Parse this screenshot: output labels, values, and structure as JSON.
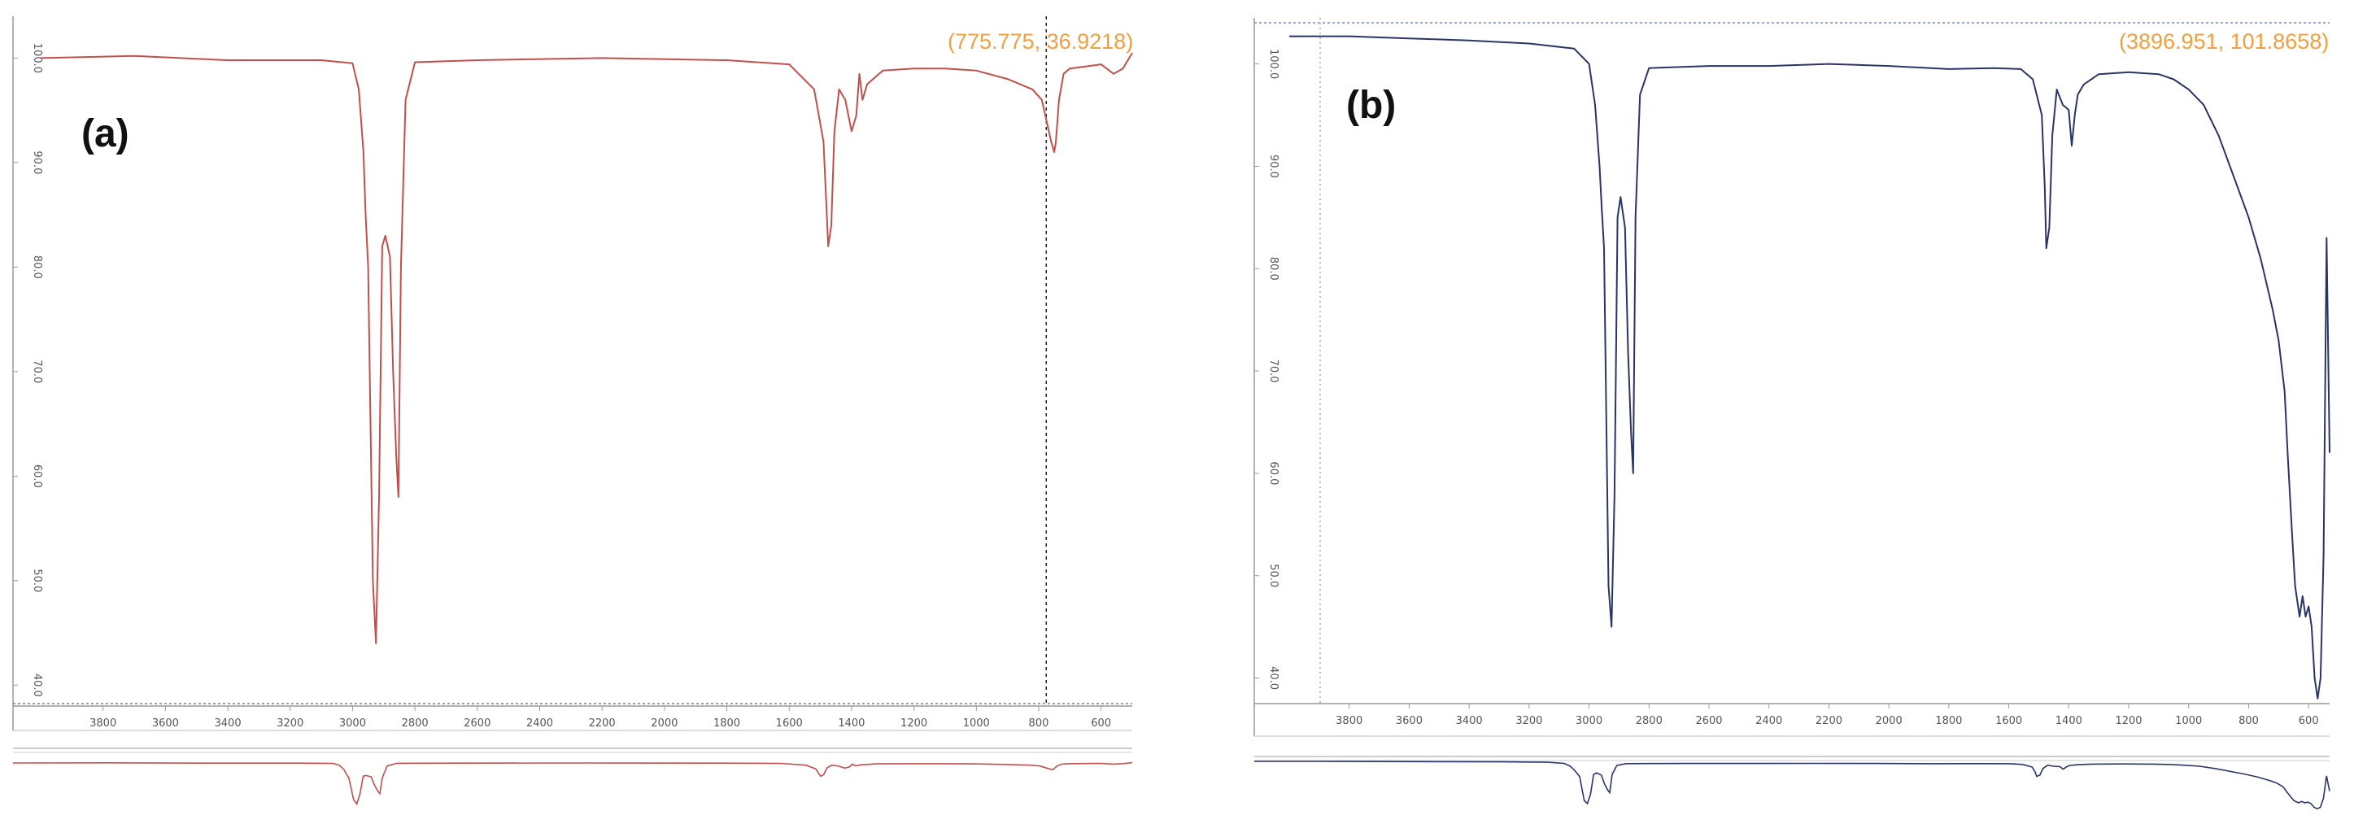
{
  "colors": {
    "panel_a": "#c0504d",
    "panel_b": "#2b3467",
    "readout": "#f0a040",
    "axis": "#888888"
  },
  "chart_data": [
    {
      "type": "line",
      "panel_label": "(a)",
      "readout": "(775.775, 36.9218)",
      "cursor_x": 775.775,
      "xlim": [
        4000,
        500
      ],
      "ylim": [
        38,
        104
      ],
      "xticks": [
        "3800",
        "3600",
        "3400",
        "3200",
        "3000",
        "2800",
        "2600",
        "2400",
        "2200",
        "2000",
        "1800",
        "1600",
        "1400",
        "1200",
        "1000",
        "800",
        "600"
      ],
      "yticks": [
        "40.0",
        "50.0",
        "60.0",
        "70.0",
        "80.0",
        "90.0",
        "100.0"
      ],
      "series": [
        {
          "x": [
            4000,
            3700,
            3400,
            3100,
            3000,
            2980,
            2965,
            2958,
            2950,
            2935,
            2925,
            2915,
            2905,
            2895,
            2880,
            2870,
            2860,
            2853,
            2845,
            2830,
            2800,
            2600,
            2200,
            1800,
            1600,
            1520,
            1490,
            1475,
            1465,
            1455,
            1440,
            1420,
            1400,
            1385,
            1375,
            1365,
            1350,
            1300,
            1200,
            1100,
            1000,
            900,
            820,
            790,
            760,
            750,
            745,
            735,
            720,
            700,
            650,
            600,
            560,
            530,
            500
          ],
          "y": [
            100,
            100.2,
            99.8,
            99.8,
            99.5,
            97,
            91,
            85,
            80,
            50,
            44,
            58,
            82,
            83,
            81,
            70,
            62,
            58,
            80,
            96,
            99.6,
            99.8,
            100,
            99.8,
            99.4,
            97,
            92,
            82,
            84,
            93,
            97,
            96,
            93,
            94.5,
            98.5,
            96,
            97.5,
            98.8,
            99,
            99,
            98.8,
            98,
            97,
            96,
            92,
            91,
            92,
            96,
            98.5,
            99,
            99.2,
            99.4,
            98.5,
            99,
            100.5
          ]
        }
      ]
    },
    {
      "type": "line",
      "panel_label": "(b)",
      "readout": "(3896.951, 101.8658)",
      "cursor_x": 3896.951,
      "xlim": [
        4000,
        530
      ],
      "ylim": [
        37.5,
        104.5
      ],
      "xticks": [
        "3800",
        "3600",
        "3400",
        "3200",
        "3000",
        "2800",
        "2600",
        "2400",
        "2200",
        "2000",
        "1800",
        "1600",
        "1400",
        "1200",
        "1000",
        "800",
        "600"
      ],
      "yticks": [
        "40.0",
        "50.0",
        "60.0",
        "70.0",
        "80.0",
        "90.0",
        "100.0"
      ],
      "series": [
        {
          "x": [
            4000,
            3800,
            3600,
            3400,
            3200,
            3050,
            3000,
            2980,
            2965,
            2958,
            2950,
            2935,
            2925,
            2915,
            2905,
            2895,
            2880,
            2870,
            2860,
            2853,
            2845,
            2830,
            2800,
            2600,
            2400,
            2200,
            2000,
            1800,
            1650,
            1560,
            1520,
            1490,
            1480,
            1475,
            1465,
            1455,
            1440,
            1420,
            1400,
            1390,
            1380,
            1370,
            1350,
            1300,
            1200,
            1100,
            1050,
            1000,
            950,
            900,
            850,
            800,
            760,
            720,
            700,
            680,
            670,
            655,
            645,
            630,
            620,
            610,
            600,
            590,
            580,
            570,
            560,
            550,
            540,
            530
          ],
          "y": [
            102.7,
            102.7,
            102.5,
            102.3,
            102,
            101.5,
            100,
            96,
            90,
            86,
            82,
            49,
            45,
            58,
            85,
            87,
            84,
            72,
            64,
            60,
            85,
            97,
            99.6,
            99.8,
            99.8,
            100,
            99.8,
            99.5,
            99.6,
            99.5,
            98.5,
            95,
            88,
            82,
            84,
            93,
            97.5,
            96,
            95.5,
            92,
            95,
            97,
            98,
            99,
            99.2,
            99,
            98.5,
            97.5,
            96,
            93,
            89,
            85,
            81,
            76,
            73,
            68,
            62,
            54,
            49,
            46,
            48,
            46,
            47,
            45,
            40,
            38,
            40,
            52,
            83,
            62
          ]
        }
      ]
    }
  ]
}
